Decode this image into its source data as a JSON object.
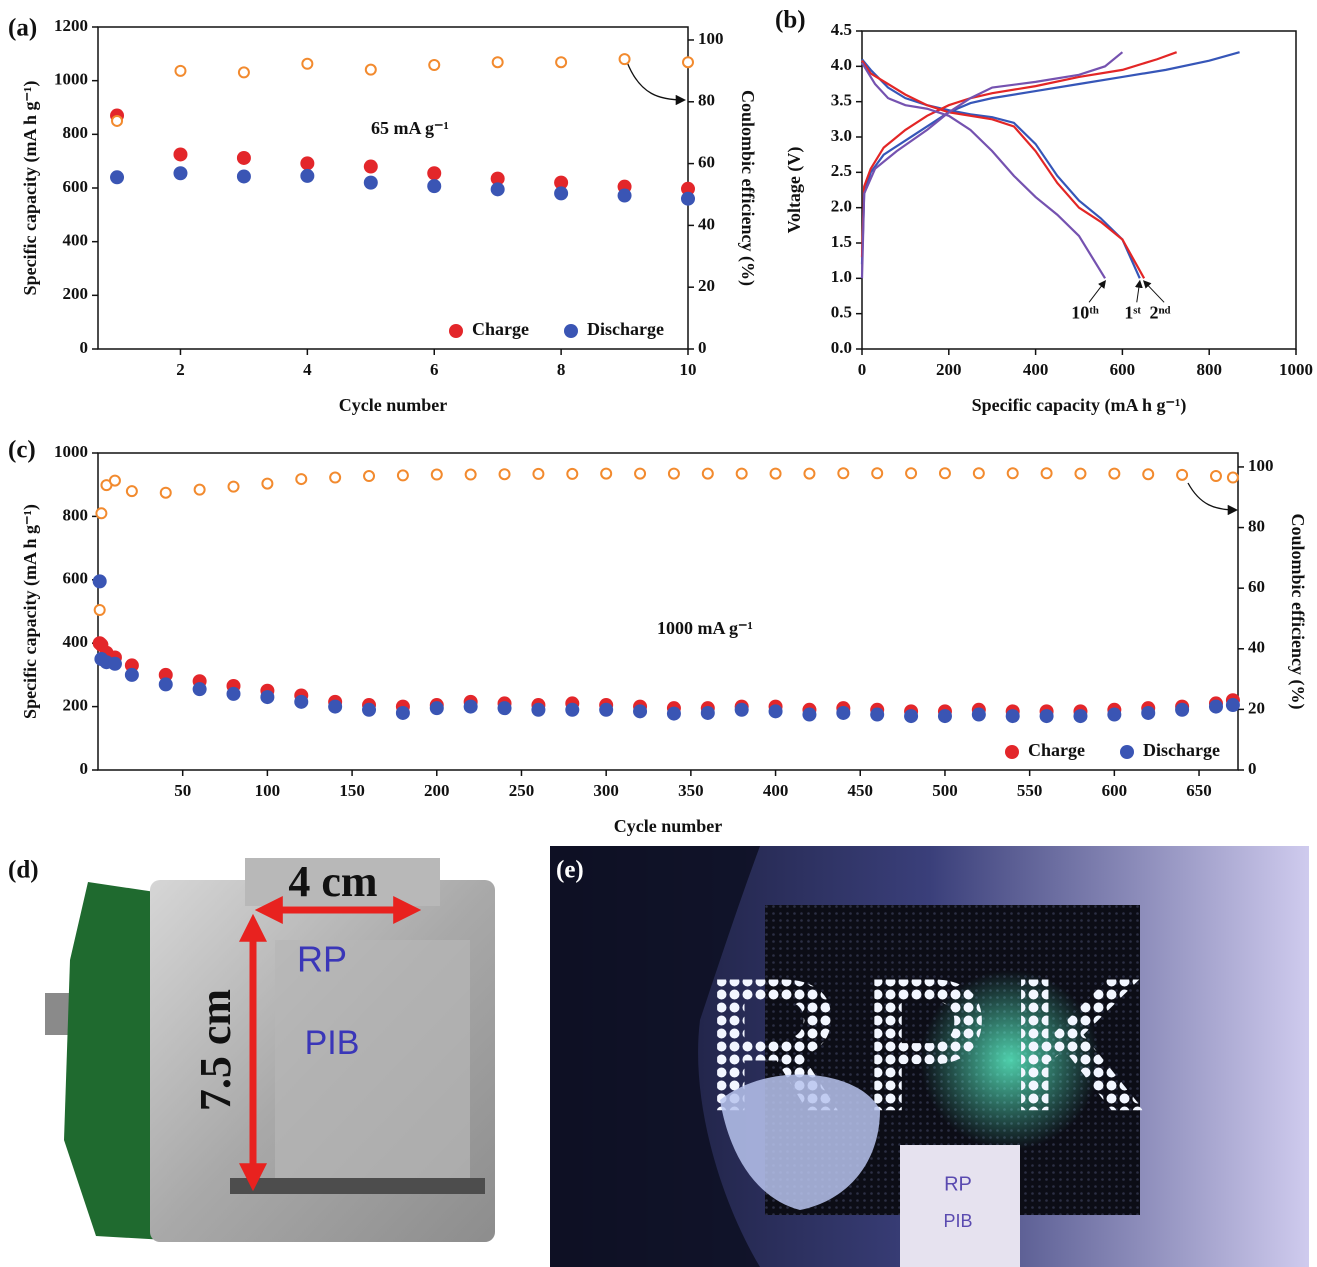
{
  "chart_data": [
    {
      "type": "scatter",
      "panel_label": "(a)",
      "annotation": "65 mA g⁻¹",
      "x_label": "Cycle number",
      "y_label": "Specific capacity (mA h g⁻¹)",
      "y2_label": "Coulombic efficiency (%)",
      "x": [
        1,
        2,
        3,
        4,
        5,
        6,
        7,
        8,
        9,
        10
      ],
      "series": [
        {
          "name": "Charge",
          "color": "#e3262a",
          "marker": "filled",
          "values": [
            870,
            725,
            712,
            692,
            680,
            655,
            635,
            620,
            605,
            597
          ]
        },
        {
          "name": "Discharge",
          "color": "#3a55b4",
          "marker": "filled",
          "values": [
            640,
            655,
            643,
            645,
            620,
            607,
            595,
            580,
            572,
            560
          ]
        },
        {
          "color": "#f28a2e",
          "marker": "open",
          "axis": "y2",
          "values": [
            73.8,
            90,
            89.5,
            92.3,
            90.4,
            91.9,
            92.8,
            92.8,
            93.8,
            92.8
          ]
        }
      ],
      "xlim": [
        0.7,
        10
      ],
      "xticks": [
        2,
        4,
        6,
        8,
        10
      ],
      "ylim": [
        0,
        1200
      ],
      "yticks": [
        0,
        200,
        400,
        600,
        800,
        1000,
        1200
      ],
      "y2lim": [
        0,
        104.2
      ],
      "y2ticks": [
        0,
        20,
        40,
        60,
        80,
        100
      ],
      "grid": false,
      "legend": "lower right"
    },
    {
      "type": "line",
      "panel_label": "(b)",
      "x_label": "Specific capacity (mA h g⁻¹)",
      "y_label": "Voltage (V)",
      "series": [
        {
          "name": "1ˢᵗ",
          "color": "#3656b8",
          "x": [
            0,
            20,
            60,
            100,
            150,
            200,
            250,
            300,
            350,
            400,
            450,
            500,
            550,
            600,
            640
          ],
          "values": [
            4.1,
            3.95,
            3.7,
            3.55,
            3.45,
            3.38,
            3.32,
            3.28,
            3.2,
            2.9,
            2.45,
            2.1,
            1.85,
            1.55,
            1.0
          ],
          "charge_x": [
            0,
            5,
            20,
            50,
            100,
            150,
            200,
            250,
            300,
            400,
            500,
            600,
            700,
            800,
            870
          ],
          "charge_values": [
            1.2,
            2.2,
            2.5,
            2.75,
            2.95,
            3.15,
            3.35,
            3.48,
            3.55,
            3.65,
            3.75,
            3.85,
            3.95,
            4.08,
            4.2
          ]
        },
        {
          "name": "2ⁿᵈ",
          "color": "#e32626",
          "x": [
            0,
            20,
            60,
            100,
            150,
            200,
            250,
            300,
            350,
            400,
            450,
            500,
            550,
            600,
            650
          ],
          "values": [
            4.08,
            3.9,
            3.75,
            3.6,
            3.45,
            3.35,
            3.3,
            3.25,
            3.15,
            2.8,
            2.35,
            2.0,
            1.8,
            1.55,
            1.0
          ],
          "charge_x": [
            0,
            5,
            20,
            50,
            100,
            150,
            200,
            250,
            300,
            400,
            500,
            600,
            680,
            725
          ],
          "charge_values": [
            1.3,
            2.3,
            2.55,
            2.85,
            3.1,
            3.3,
            3.45,
            3.55,
            3.62,
            3.72,
            3.85,
            3.95,
            4.1,
            4.2
          ]
        },
        {
          "name": "10ᵗʰ",
          "color": "#7552b0",
          "x": [
            0,
            30,
            60,
            100,
            150,
            200,
            250,
            300,
            350,
            400,
            450,
            500,
            560
          ],
          "values": [
            4.05,
            3.75,
            3.55,
            3.45,
            3.4,
            3.3,
            3.1,
            2.8,
            2.45,
            2.15,
            1.9,
            1.6,
            1.0
          ],
          "charge_x": [
            0,
            5,
            30,
            80,
            150,
            200,
            250,
            300,
            400,
            500,
            560,
            600
          ],
          "charge_values": [
            1.0,
            2.2,
            2.55,
            2.8,
            3.1,
            3.35,
            3.55,
            3.7,
            3.78,
            3.88,
            4.0,
            4.2
          ]
        }
      ],
      "xlim": [
        0,
        1000
      ],
      "xticks": [
        0,
        200,
        400,
        600,
        800,
        1000
      ],
      "ylim": [
        0,
        4.5
      ],
      "yticks": [
        {
          "value": 0,
          "label": "0.0"
        },
        0.5,
        {
          "value": 1,
          "label": "1.0"
        },
        1.5,
        {
          "value": 2,
          "label": "2.0"
        },
        2.5,
        {
          "value": 3,
          "label": "3.0"
        },
        3.5,
        {
          "value": 4,
          "label": "4.0"
        },
        4.5
      ],
      "grid": false
    },
    {
      "type": "scatter",
      "panel_label": "(c)",
      "annotation": "1000 mA g⁻¹",
      "x_label": "Cycle number",
      "y_label": "Specific capacity (mA h g⁻¹)",
      "y2_label": "Coulombic efficiency (%)",
      "x": [
        1,
        2,
        5,
        10,
        20,
        40,
        60,
        80,
        100,
        120,
        140,
        160,
        180,
        200,
        220,
        240,
        260,
        280,
        300,
        320,
        340,
        360,
        380,
        400,
        420,
        440,
        460,
        480,
        500,
        520,
        540,
        560,
        580,
        600,
        620,
        640,
        660,
        670
      ],
      "series": [
        {
          "name": "Charge",
          "color": "#e3262a",
          "marker": "filled",
          "values": [
            400,
            395,
            370,
            355,
            330,
            300,
            280,
            265,
            250,
            235,
            215,
            205,
            200,
            205,
            215,
            210,
            205,
            210,
            205,
            200,
            195,
            195,
            200,
            200,
            190,
            195,
            190,
            185,
            185,
            190,
            185,
            185,
            185,
            190,
            195,
            200,
            210,
            220
          ]
        },
        {
          "name": "Discharge",
          "color": "#3a55b4",
          "marker": "filled",
          "values": [
            595,
            350,
            340,
            335,
            300,
            270,
            255,
            240,
            230,
            215,
            200,
            190,
            180,
            195,
            200,
            195,
            190,
            190,
            190,
            185,
            178,
            180,
            190,
            185,
            175,
            180,
            175,
            170,
            170,
            175,
            170,
            170,
            170,
            175,
            180,
            190,
            200,
            205
          ]
        },
        {
          "color": "#f28a2e",
          "marker": "open",
          "axis": "y2",
          "values": [
            52.8,
            84.7,
            94,
            95.5,
            92,
            91.5,
            92.5,
            93.5,
            94.5,
            96,
            96.5,
            97,
            97.2,
            97.5,
            97.5,
            97.6,
            97.7,
            97.7,
            97.8,
            97.8,
            97.8,
            97.8,
            97.8,
            97.8,
            97.8,
            97.9,
            97.9,
            97.9,
            97.9,
            97.9,
            97.9,
            97.9,
            97.8,
            97.8,
            97.6,
            97.4,
            97,
            96.5
          ]
        }
      ],
      "xlim": [
        0,
        673
      ],
      "xticks": [
        50,
        100,
        150,
        200,
        250,
        300,
        350,
        400,
        450,
        500,
        550,
        600,
        650
      ],
      "ylim": [
        0,
        1000
      ],
      "yticks": [
        0,
        200,
        400,
        600,
        800,
        1000
      ],
      "y2lim": [
        0,
        104.6
      ],
      "y2ticks": [
        0,
        20,
        40,
        60,
        80,
        100
      ],
      "grid": false,
      "legend": "lower right"
    }
  ],
  "photos": {
    "d": {
      "label": "(d)",
      "width_label": "4 cm",
      "height_label": "7.5 cm",
      "handwriting": [
        "RP",
        "PIB"
      ]
    },
    "e": {
      "label": "(e)",
      "led_text": "RPK",
      "cell_text": [
        "RP",
        "PIB"
      ]
    }
  }
}
